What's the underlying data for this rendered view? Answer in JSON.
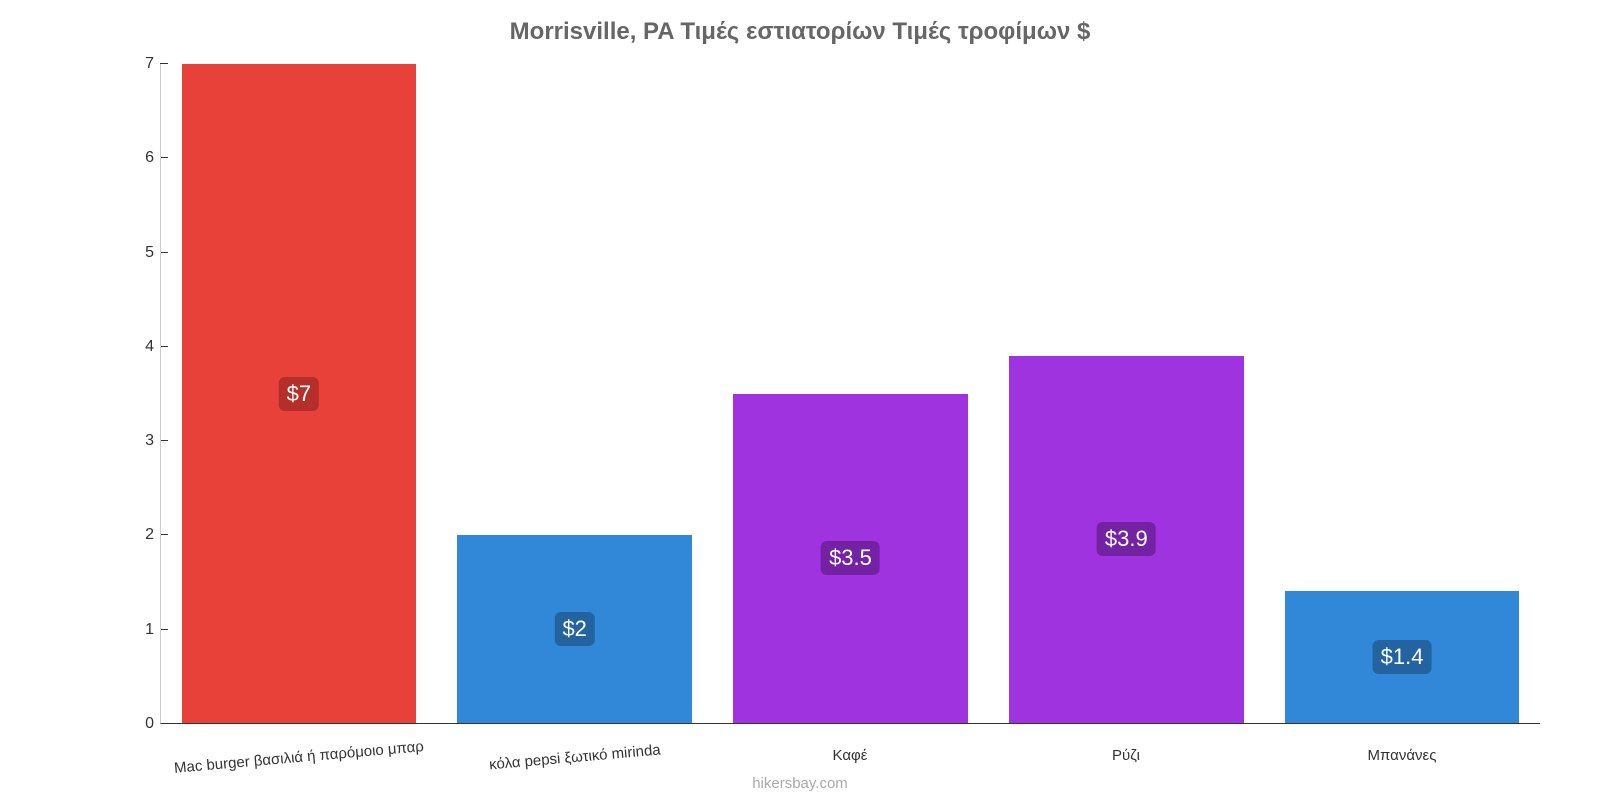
{
  "chart": {
    "type": "bar",
    "title": "Morrisville, PA Τιμές εστιατορίων Τιμές τροφίμων $",
    "title_color": "#666666",
    "title_fontsize": 24,
    "background_color": "#ffffff",
    "ylim": [
      0,
      7
    ],
    "ytick_step": 1,
    "yticks": [
      0,
      1,
      2,
      3,
      4,
      5,
      6,
      7
    ],
    "axis_color": "#333333",
    "tick_fontsize": 16,
    "bar_width_ratio": 0.85,
    "categories": [
      {
        "label": "Mac burger βασιλιά ή παρόμοιο μπαρ",
        "value": 7.0,
        "value_label": "$7",
        "bar_color": "#e8413a",
        "badge_color": "#b42f29",
        "tilt": true
      },
      {
        "label": "κόλα pepsi ξωτικό mirinda",
        "value": 2.0,
        "value_label": "$2",
        "bar_color": "#3288d8",
        "badge_color": "#23639f",
        "tilt": true
      },
      {
        "label": "Καφέ",
        "value": 3.5,
        "value_label": "$3.5",
        "bar_color": "#a033e0",
        "badge_color": "#7322a3",
        "tilt": false
      },
      {
        "label": "Ρύζι",
        "value": 3.9,
        "value_label": "$3.9",
        "bar_color": "#a033e0",
        "badge_color": "#7322a3",
        "tilt": false
      },
      {
        "label": "Μπανάνες",
        "value": 1.4,
        "value_label": "$1.4",
        "bar_color": "#3288d8",
        "badge_color": "#23639f",
        "tilt": false
      }
    ],
    "xlabel_fontsize": 15,
    "value_label_fontsize": 22,
    "value_label_text_color": "#ffffff",
    "attribution": "hikersbay.com",
    "attribution_color": "#aaaaaa"
  }
}
